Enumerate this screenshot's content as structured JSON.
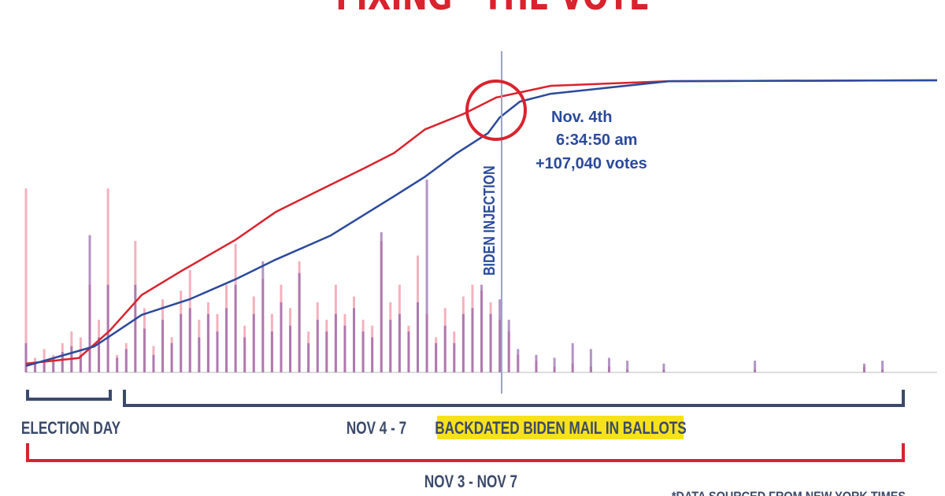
{
  "chart_data": [
    {
      "type": "bar",
      "title": "“FIXING” THE VOTE",
      "x": [
        0,
        1,
        2,
        3,
        4,
        5,
        6,
        7,
        8,
        9,
        10,
        11,
        12,
        13,
        14,
        15,
        16,
        17,
        18,
        19,
        20,
        21,
        22,
        23,
        24,
        25,
        26,
        27,
        28,
        29,
        30,
        31,
        32,
        33,
        34,
        35,
        36,
        37,
        38,
        39,
        40,
        41,
        42,
        43,
        44,
        45,
        46,
        47,
        48,
        49,
        50,
        51,
        52,
        53,
        54,
        56,
        58,
        60,
        62,
        64,
        66,
        70,
        80,
        92,
        94
      ],
      "series": [
        {
          "color": "#f2a3b3",
          "values": [
            63,
            5,
            8,
            6,
            10,
            14,
            12,
            30,
            18,
            63,
            6,
            10,
            45,
            22,
            9,
            25,
            12,
            28,
            35,
            18,
            24,
            20,
            30,
            44,
            16,
            26,
            32,
            20,
            30,
            22,
            38,
            14,
            24,
            18,
            30,
            20,
            26,
            18,
            16,
            45,
            24,
            30,
            16,
            40,
            20,
            12,
            22,
            14,
            26,
            30,
            28,
            24,
            18,
            14,
            6,
            4,
            2,
            3,
            2,
            2,
            1,
            1,
            1,
            2,
            1
          ]
        },
        {
          "color": "#8a5aa6",
          "values": [
            10,
            3,
            4,
            5,
            7,
            9,
            6,
            47,
            12,
            30,
            5,
            8,
            30,
            15,
            6,
            18,
            10,
            20,
            22,
            12,
            20,
            14,
            22,
            30,
            12,
            20,
            38,
            14,
            24,
            16,
            34,
            10,
            18,
            14,
            20,
            16,
            22,
            14,
            12,
            48,
            18,
            20,
            14,
            24,
            66,
            10,
            16,
            10,
            20,
            22,
            30,
            20,
            25,
            18,
            8,
            6,
            5,
            10,
            8,
            5,
            4,
            3,
            4,
            3,
            4
          ]
        }
      ],
      "xlim": [
        0,
        100
      ],
      "ylim": [
        0,
        100
      ]
    },
    {
      "type": "line",
      "series": [
        {
          "color": "#d9232e",
          "x": [
            0,
            5.8,
            9.2,
            12.7,
            17,
            23,
            27.4,
            31.7,
            37,
            40.4,
            43.8,
            48.1,
            51.6,
            57.6,
            70.6,
            100
          ],
          "values": [
            3,
            4.9,
            14.3,
            26.5,
            34.6,
            45.4,
            54.9,
            61.6,
            69.7,
            75.1,
            83.2,
            88.6,
            94.1,
            98.1,
            99.7,
            100
          ]
        },
        {
          "color": "#2b4a9b",
          "x": [
            0,
            7.5,
            12.7,
            18,
            23,
            27.4,
            33.4,
            40.4,
            43.8,
            47.3,
            50.7,
            52,
            54.2,
            57.6,
            70.6,
            100
          ],
          "values": [
            2.2,
            8.9,
            19.7,
            25.1,
            31.9,
            38.6,
            46.8,
            60.3,
            67,
            75.1,
            81.9,
            87.3,
            92.7,
            95.4,
            99.7,
            100
          ]
        }
      ],
      "xlim": [
        0,
        100
      ],
      "ylim": [
        0,
        100
      ]
    }
  ],
  "annotations": {
    "injection": "BIDEN INJECTION",
    "time": [
      "Nov. 4th",
      "6:34:50 am",
      "+107,040 votes"
    ],
    "election_day": "ELECTION DAY",
    "nov4_7": "NOV 4 - 7",
    "backdated": "BACKDATED BIDEN MAIL IN BALLOTS",
    "nov3_7": "NOV 3 - NOV 7",
    "source": "*DATA SOURCED FROM NEW YORK TIMES"
  }
}
